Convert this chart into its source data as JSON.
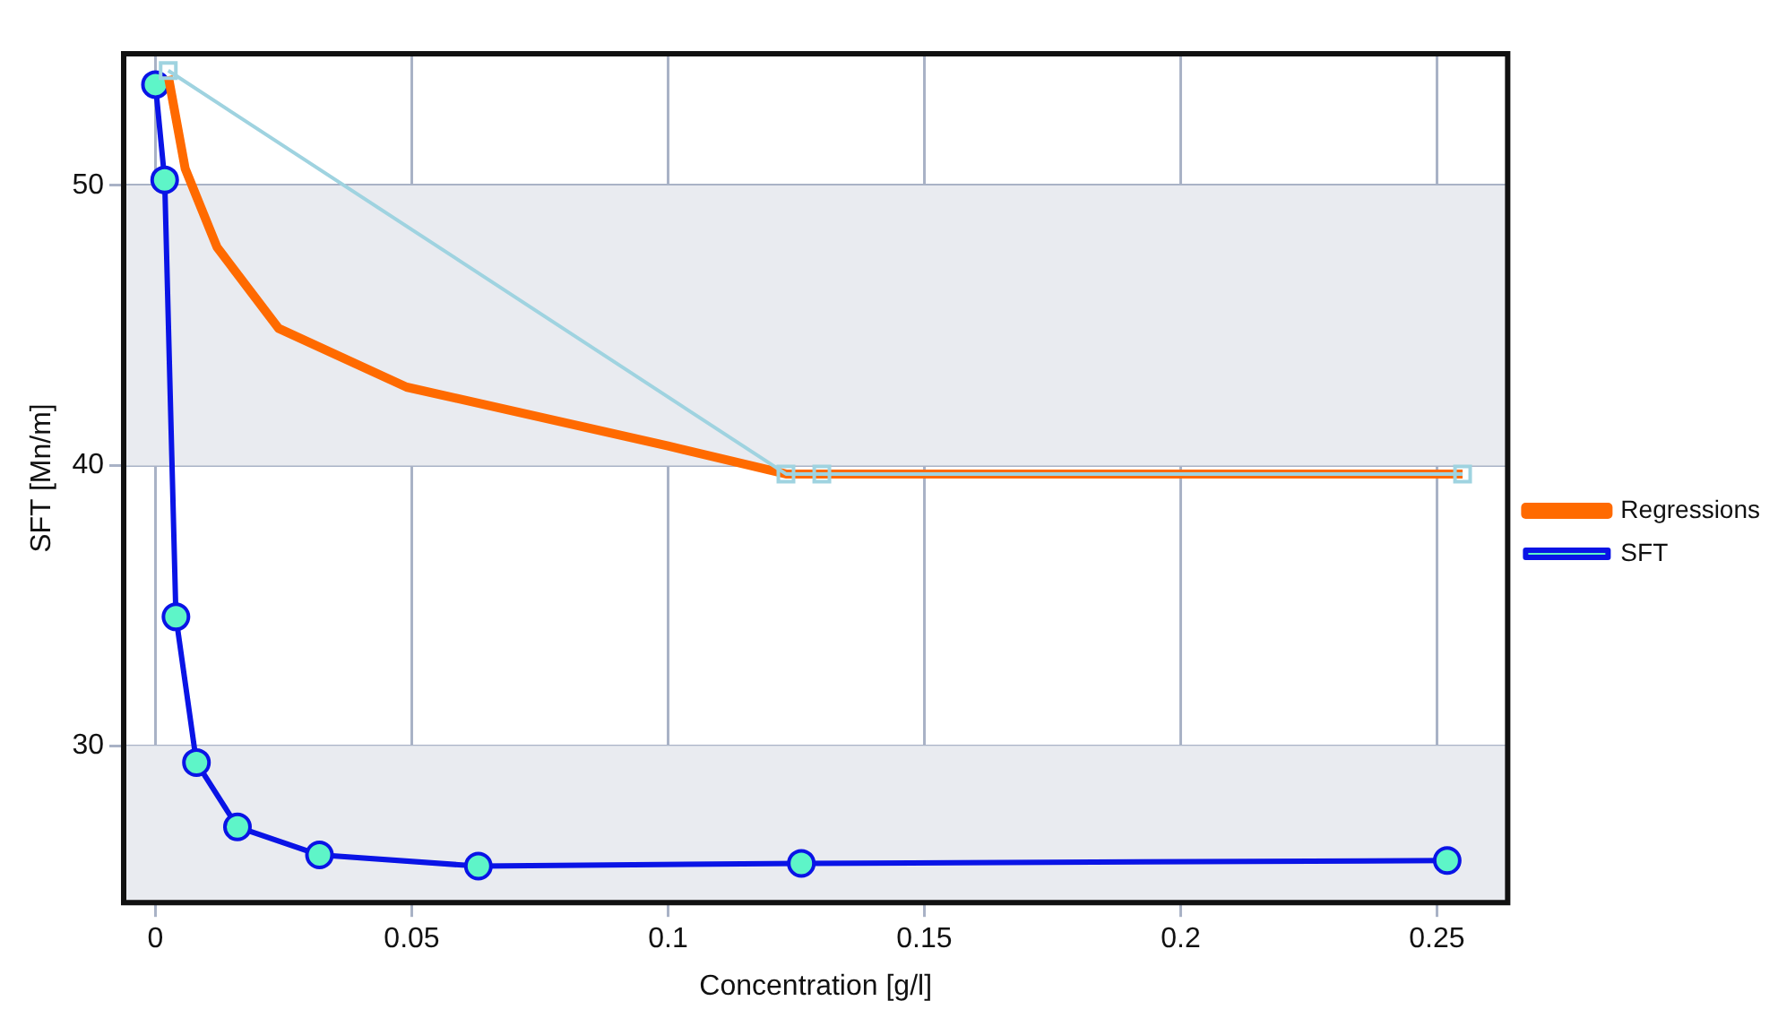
{
  "chart_data": {
    "type": "line",
    "xlabel": "Concentration [g/l]",
    "ylabel": "SFT [Mn/m]",
    "xlim": [
      -0.0062,
      0.2638
    ],
    "ylim": [
      24.4,
      54.7
    ],
    "xticks": [
      0,
      0.05,
      0.1,
      0.15,
      0.2,
      0.25
    ],
    "yticks": [
      30,
      40,
      50
    ],
    "grid": true,
    "legend": "right",
    "bands": [
      {
        "axis": "y",
        "from": 40,
        "to": 50,
        "color": "#e9ebf0"
      },
      {
        "axis": "y",
        "from": 24.4,
        "to": 30,
        "color": "#e9ebf0"
      }
    ],
    "series": [
      {
        "name": null,
        "color": "#9fd3e0",
        "marker": "square",
        "x": [
          0.0025,
          0.123,
          0.13,
          0.255
        ],
        "values": [
          54.1,
          39.7,
          39.7,
          39.7
        ]
      },
      {
        "name": "Regressions",
        "color": "#ff6a00",
        "marker": "none",
        "x": [
          0.0025,
          0.0058,
          0.012,
          0.024,
          0.049,
          0.1,
          0.123,
          0.255
        ],
        "values": [
          53.9,
          50.6,
          47.8,
          44.9,
          42.8,
          40.7,
          39.7,
          39.7
        ]
      },
      {
        "name": "SFT",
        "color": "#0a14e6",
        "marker": "circle",
        "x": [
          0,
          0.0018,
          0.004,
          0.008,
          0.016,
          0.032,
          0.063,
          0.126,
          0.252
        ],
        "values": [
          53.6,
          50.2,
          34.6,
          29.4,
          27.1,
          26.1,
          25.7,
          25.8,
          25.9
        ]
      }
    ]
  }
}
